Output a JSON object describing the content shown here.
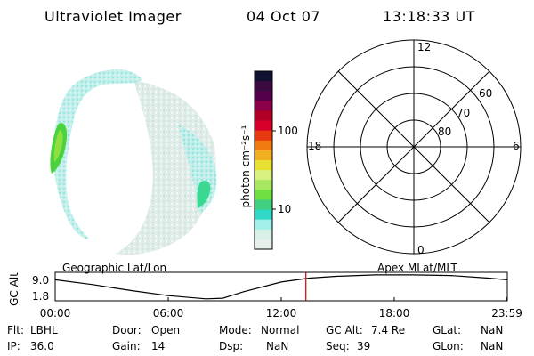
{
  "header": {
    "title": "Ultraviolet Imager",
    "date": "04 Oct 07",
    "time": "13:18:33 UT"
  },
  "colorbar": {
    "label": "photon cm⁻²s⁻¹",
    "ticks": [
      "100",
      "10"
    ],
    "colors": [
      "#101030",
      "#3a0a40",
      "#55004a",
      "#8a004a",
      "#b00028",
      "#d8002a",
      "#e83a10",
      "#f07a10",
      "#f0b020",
      "#e8e030",
      "#d8f080",
      "#a8e860",
      "#70e040",
      "#40d080",
      "#30d8c8",
      "#a0f0e8",
      "#d8f0e8",
      "#e8f0ec"
    ]
  },
  "polar": {
    "mlt_labels": [
      "12",
      "18",
      "6",
      "0"
    ],
    "lat_labels": [
      "60",
      "70",
      "80"
    ]
  },
  "timeline": {
    "ylabel": "GC Alt",
    "left_label": "Geographic Lat/Lon",
    "right_label": "Apex MLat/MLT",
    "y_ticks": [
      "9.0",
      "1.8"
    ],
    "x_ticks": [
      "00:00",
      "06:00",
      "12:00",
      "18:00",
      "23:59"
    ]
  },
  "chart_data": {
    "type": "line",
    "title": "",
    "xlabel": "",
    "ylabel": "GC Alt",
    "x": [
      0,
      2,
      4,
      6,
      8,
      8.9,
      10,
      12,
      13.5,
      15,
      17,
      19,
      21,
      23,
      23.98
    ],
    "values": [
      7.5,
      6.0,
      4.2,
      2.6,
      1.6,
      1.8,
      3.8,
      6.8,
      8.0,
      8.6,
      9.0,
      9.0,
      8.8,
      8.0,
      7.5
    ],
    "xlim": [
      0,
      24
    ],
    "ylim": [
      1.0,
      9.8
    ],
    "current_time": 13.31,
    "series": [
      {
        "name": "",
        "values": [
          7.5,
          6.0,
          4.2,
          2.6,
          1.6,
          1.8,
          3.8,
          6.8,
          8.0,
          8.6,
          9.0,
          9.0,
          8.8,
          8.0,
          7.5
        ]
      }
    ]
  },
  "status": {
    "flt_label": "Flt:",
    "flt_value": "LBHL",
    "ip_label": "IP:",
    "ip_value": "36.0",
    "door_label": "Door:",
    "door_value": "Open",
    "gain_label": "Gain:",
    "gain_value": "14",
    "mode_label": "Mode:",
    "mode_value": "Normal",
    "dsp_label": "Dsp:",
    "dsp_value": "NaN",
    "gcalt_label": "GC Alt:",
    "gcalt_value": "7.4 Re",
    "seq_label": "Seq:",
    "seq_value": "39",
    "glat_label": "GLat:",
    "glat_value": "NaN",
    "glon_label": "GLon:",
    "glon_value": "NaN"
  }
}
